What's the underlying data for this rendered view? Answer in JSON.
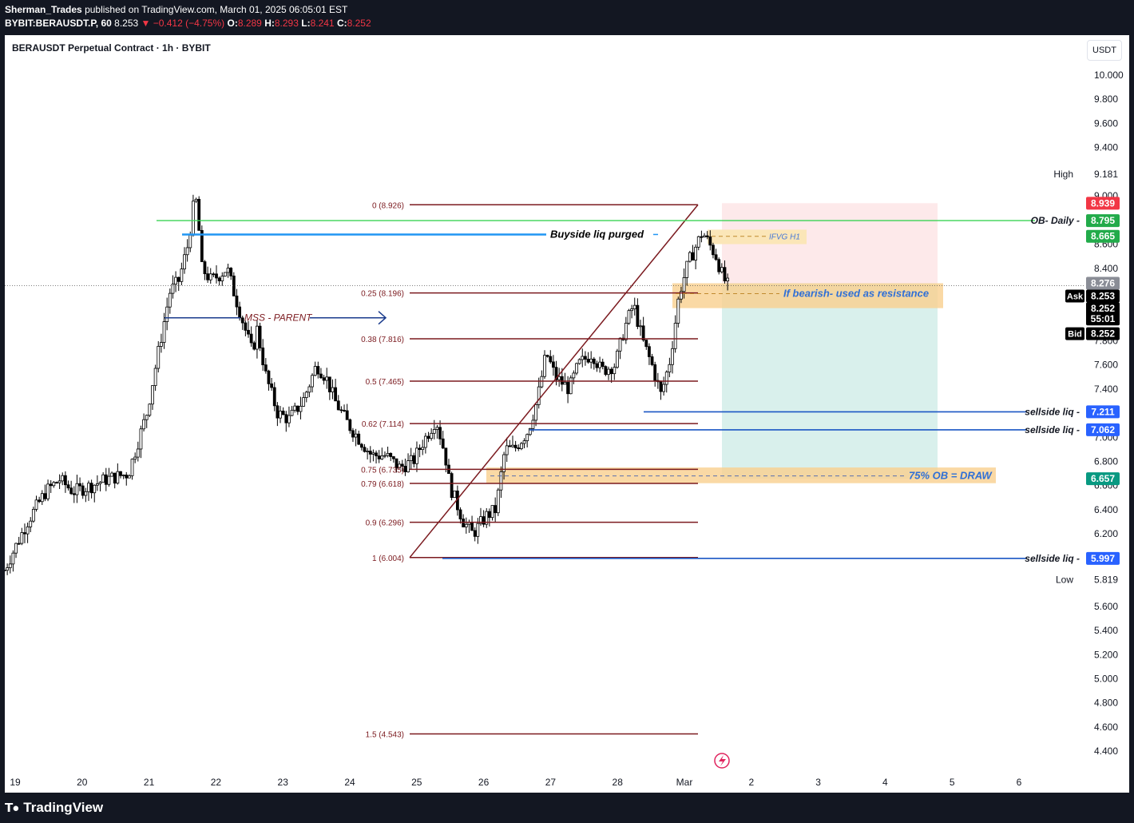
{
  "header": {
    "publisher": "Sherman_Trades",
    "published_text": "published on TradingView.com, March 01, 2025 06:05:01 EST",
    "symbol": "BYBIT:BERAUSDT.P, 60",
    "last": "8.253",
    "change": "▼ −0.412 (−4.75%)",
    "o_label": "O:",
    "o": "8.289",
    "h_label": "H:",
    "h": "8.293",
    "l_label": "L:",
    "l": "8.241",
    "c_label": "C:",
    "c": "8.252"
  },
  "chart": {
    "title": "BERAUSDT Perpetual Contract · 1h · BYBIT",
    "currency": "USDT"
  },
  "footer": {
    "brand": "TradingView",
    "logo_icon": "tradingview-logo-icon"
  },
  "colors": {
    "candle_up": "#ffffff",
    "candle_down": "#000000",
    "fib": "#7b1a1f",
    "blue": "#1a56c4",
    "green_line": "#39d353",
    "badge_red": "#f23645",
    "badge_green": "#22ab4a",
    "badge_blue": "#2962ff",
    "badge_darkgreen": "#089981"
  },
  "chart_data": {
    "type": "candlestick",
    "x_ticks": [
      "19",
      "20",
      "21",
      "22",
      "23",
      "24",
      "25",
      "26",
      "27",
      "28",
      "Mar",
      "2",
      "3",
      "4",
      "5",
      "6"
    ],
    "y_ticks": [
      "10.000",
      "9.800",
      "9.600",
      "9.400",
      "9.181",
      "9.000",
      "8.800",
      "8.600",
      "8.400",
      "8.200",
      "8.000",
      "7.800",
      "7.600",
      "7.400",
      "7.200",
      "7.000",
      "6.800",
      "6.600",
      "6.400",
      "6.200",
      "6.000",
      "5.819",
      "5.600",
      "5.400",
      "5.200",
      "5.000",
      "4.800",
      "4.600",
      "4.400"
    ],
    "high_label": "High",
    "high_value": "9.181",
    "low_label": "Low",
    "low_value": "5.819",
    "fib_levels": [
      {
        "label": "0 (8.926)",
        "value": 8.926
      },
      {
        "label": "0.25 (8.196)",
        "value": 8.196
      },
      {
        "label": "0.38 (7.816)",
        "value": 7.816
      },
      {
        "label": "0.5 (7.465)",
        "value": 7.465
      },
      {
        "label": "0.62 (7.114)",
        "value": 7.114
      },
      {
        "label": "0.75 (6.735)",
        "value": 6.735
      },
      {
        "label": "0.79 (6.618)",
        "value": 6.618
      },
      {
        "label": "0.9 (6.296)",
        "value": 6.296
      },
      {
        "label": "1 (6.004)",
        "value": 6.004
      },
      {
        "label": "1.5 (4.543)",
        "value": 4.543
      }
    ],
    "price_badges": [
      {
        "value": "8.939",
        "type": "red"
      },
      {
        "value": "8.795",
        "type": "green"
      },
      {
        "value": "8.665",
        "type": "green"
      },
      {
        "value": "8.276",
        "type": "gray"
      },
      {
        "value": "8.253",
        "type": "black",
        "side_label": "Ask"
      },
      {
        "value": "8.252",
        "type": "black"
      },
      {
        "value": "55:01",
        "type": "black"
      },
      {
        "value": "8.252",
        "type": "black",
        "side_label": "Bid"
      },
      {
        "value": "7.211",
        "type": "blue"
      },
      {
        "value": "7.062",
        "type": "blue"
      },
      {
        "value": "6.657",
        "type": "darkgreen"
      },
      {
        "value": "5.997",
        "type": "blue"
      }
    ],
    "annotations": {
      "ob_daily": "OB- Daily",
      "buyside": "Buyside liq purged",
      "mss": "MSS - PARENT",
      "ifvg": "IFVG H1",
      "bearish": "If bearish- used as resistance",
      "ob75": "75% OB = DRAW",
      "sellside": "sellside liq"
    },
    "position": {
      "entry": 8.276,
      "stop": 8.939,
      "target": 6.657
    },
    "x_range": [
      "2025-02-18",
      "2025-03-06"
    ],
    "ylim": [
      4.3,
      10.1
    ]
  }
}
